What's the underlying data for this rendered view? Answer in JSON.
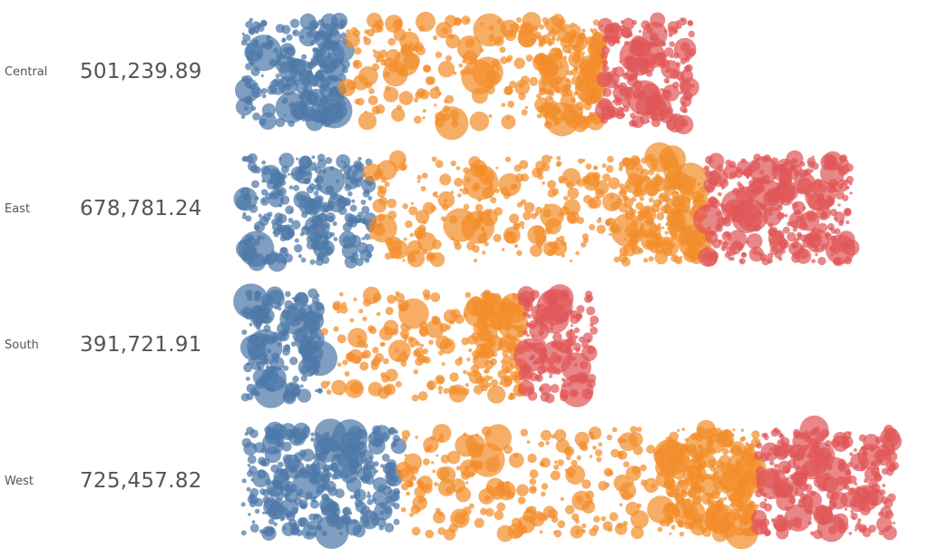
{
  "chart_data": {
    "type": "scatter",
    "title": "",
    "xlabel": "",
    "ylabel": "",
    "grid": false,
    "legend": "none",
    "colors": [
      "#4e79a7",
      "#f28e2b",
      "#e15759"
    ],
    "rows": [
      {
        "region": "Central",
        "total": 501239.89,
        "total_label": "501,239.89",
        "segment_shares": [
          0.23,
          0.57,
          0.2
        ]
      },
      {
        "region": "East",
        "total": 678781.24,
        "total_label": "678,781.24",
        "segment_shares": [
          0.21,
          0.55,
          0.24
        ]
      },
      {
        "region": "South",
        "total": 391721.91,
        "total_label": "391,721.91",
        "segment_shares": [
          0.22,
          0.58,
          0.2
        ]
      },
      {
        "region": "West",
        "total": 725457.82,
        "total_label": "725,457.82",
        "segment_shares": [
          0.24,
          0.55,
          0.21
        ]
      }
    ]
  }
}
